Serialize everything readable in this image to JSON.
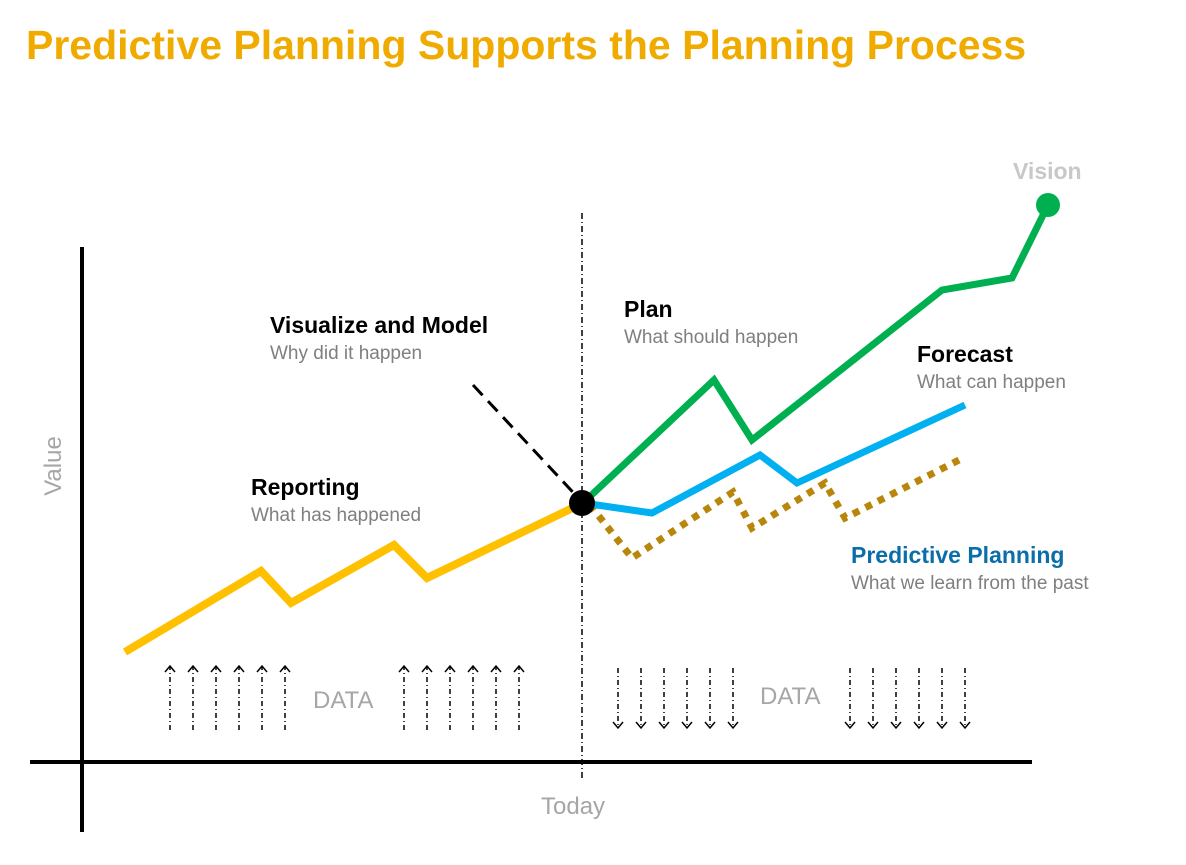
{
  "title": "Predictive Planning Supports the Planning Process",
  "colors": {
    "title": "#f0ab00",
    "reporting": "#ffc000",
    "plan": "#00b050",
    "forecast": "#00b0f0",
    "predictive": "#b8860b",
    "predictive_label": "#0a6ea8"
  },
  "axes": {
    "y_label": "Value",
    "x_marker": "Today"
  },
  "labels": {
    "vision": "Vision",
    "visualize": {
      "heading": "Visualize and Model",
      "sub": "Why did it happen"
    },
    "plan": {
      "heading": "Plan",
      "sub": "What should happen"
    },
    "forecast": {
      "heading": "Forecast",
      "sub": "What can happen"
    },
    "reporting": {
      "heading": "Reporting",
      "sub": "What has happened"
    },
    "predictive": {
      "heading": "Predictive Planning",
      "sub": "What we learn from the past"
    },
    "data_left": "DATA",
    "data_right": "DATA"
  }
}
